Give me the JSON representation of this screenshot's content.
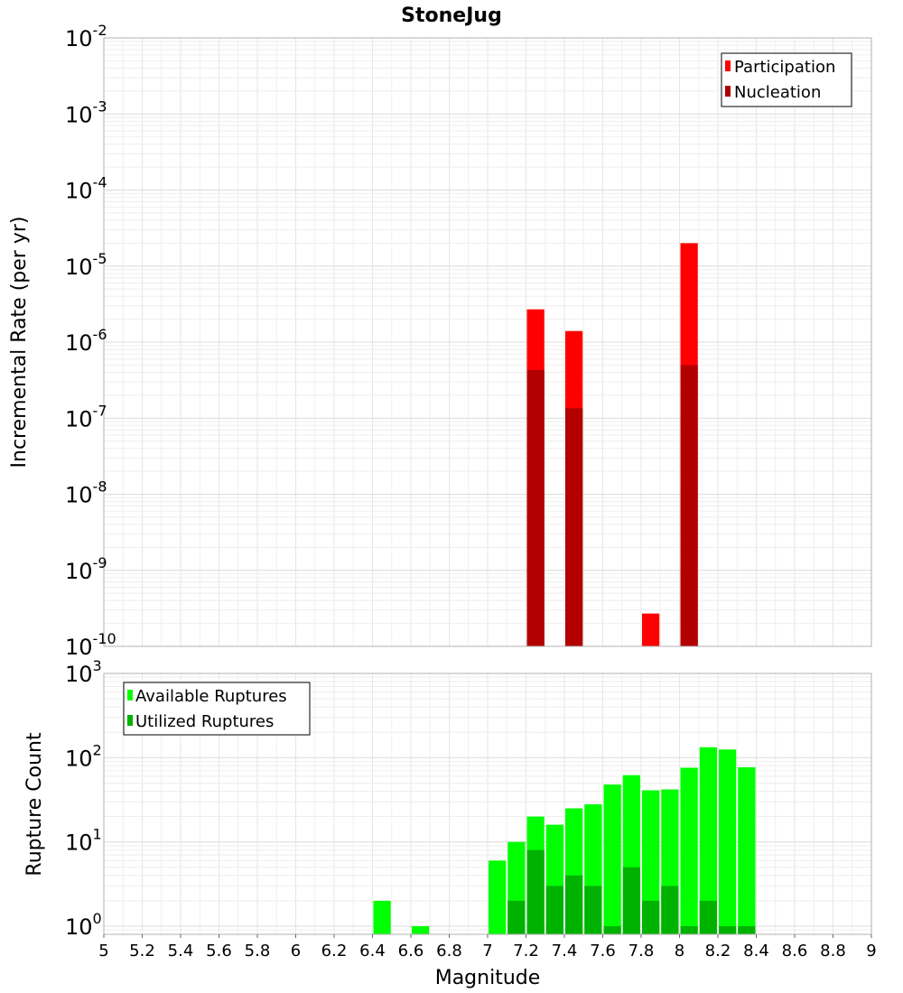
{
  "chart_data": [
    {
      "type": "bar",
      "title": "StoneJug",
      "xlabel": "",
      "ylabel": "Incremental Rate (per yr)",
      "yscale": "log",
      "ylim": [
        1e-10,
        0.01
      ],
      "xlim": [
        5,
        9
      ],
      "bar_width": 0.1,
      "y_tick_exponents": [
        "-2",
        "-3",
        "-4",
        "-5",
        "-6",
        "-7",
        "-8",
        "-9",
        "-10"
      ],
      "legend_position": "top-right",
      "series": [
        {
          "name": "Participation",
          "color": "#ff0000",
          "points": [
            {
              "x": 7.25,
              "y": 2.7e-06
            },
            {
              "x": 7.45,
              "y": 1.4e-06
            },
            {
              "x": 7.85,
              "y": 2.7e-10
            },
            {
              "x": 8.05,
              "y": 2e-05
            }
          ]
        },
        {
          "name": "Nucleation",
          "color": "#b20000",
          "points": [
            {
              "x": 7.25,
              "y": 4.3e-07
            },
            {
              "x": 7.45,
              "y": 1.35e-07
            },
            {
              "x": 8.05,
              "y": 5e-07
            }
          ]
        }
      ]
    },
    {
      "type": "bar",
      "title": "",
      "xlabel": "Magnitude",
      "ylabel": "Rupture Count",
      "yscale": "log",
      "ylim": [
        0.8,
        1000
      ],
      "xlim": [
        5,
        9
      ],
      "bar_width": 0.1,
      "x_ticks": [
        "5",
        "5.2",
        "5.4",
        "5.6",
        "5.8",
        "6",
        "6.2",
        "6.4",
        "6.6",
        "6.8",
        "7",
        "7.2",
        "7.4",
        "7.6",
        "7.8",
        "8",
        "8.2",
        "8.4",
        "8.6",
        "8.8",
        "9"
      ],
      "y_tick_exponents": [
        "3",
        "2",
        "1",
        "0"
      ],
      "legend_position": "top-left",
      "series": [
        {
          "name": "Available Ruptures",
          "color": "#00ff00",
          "points": [
            {
              "x": 6.45,
              "y": 2
            },
            {
              "x": 6.65,
              "y": 1
            },
            {
              "x": 7.05,
              "y": 6
            },
            {
              "x": 7.15,
              "y": 10
            },
            {
              "x": 7.25,
              "y": 20
            },
            {
              "x": 7.35,
              "y": 16
            },
            {
              "x": 7.45,
              "y": 25
            },
            {
              "x": 7.55,
              "y": 28
            },
            {
              "x": 7.65,
              "y": 48
            },
            {
              "x": 7.75,
              "y": 62
            },
            {
              "x": 7.85,
              "y": 41
            },
            {
              "x": 7.95,
              "y": 42
            },
            {
              "x": 8.05,
              "y": 76
            },
            {
              "x": 8.15,
              "y": 133
            },
            {
              "x": 8.25,
              "y": 125
            },
            {
              "x": 8.35,
              "y": 77
            }
          ]
        },
        {
          "name": "Utilized Ruptures",
          "color": "#00b200",
          "points": [
            {
              "x": 7.15,
              "y": 2
            },
            {
              "x": 7.25,
              "y": 8
            },
            {
              "x": 7.35,
              "y": 3
            },
            {
              "x": 7.45,
              "y": 4
            },
            {
              "x": 7.55,
              "y": 3
            },
            {
              "x": 7.65,
              "y": 1
            },
            {
              "x": 7.75,
              "y": 5
            },
            {
              "x": 7.85,
              "y": 2
            },
            {
              "x": 7.95,
              "y": 3
            },
            {
              "x": 8.05,
              "y": 1
            },
            {
              "x": 8.15,
              "y": 2
            },
            {
              "x": 8.25,
              "y": 1
            },
            {
              "x": 8.35,
              "y": 1
            }
          ]
        }
      ]
    }
  ]
}
